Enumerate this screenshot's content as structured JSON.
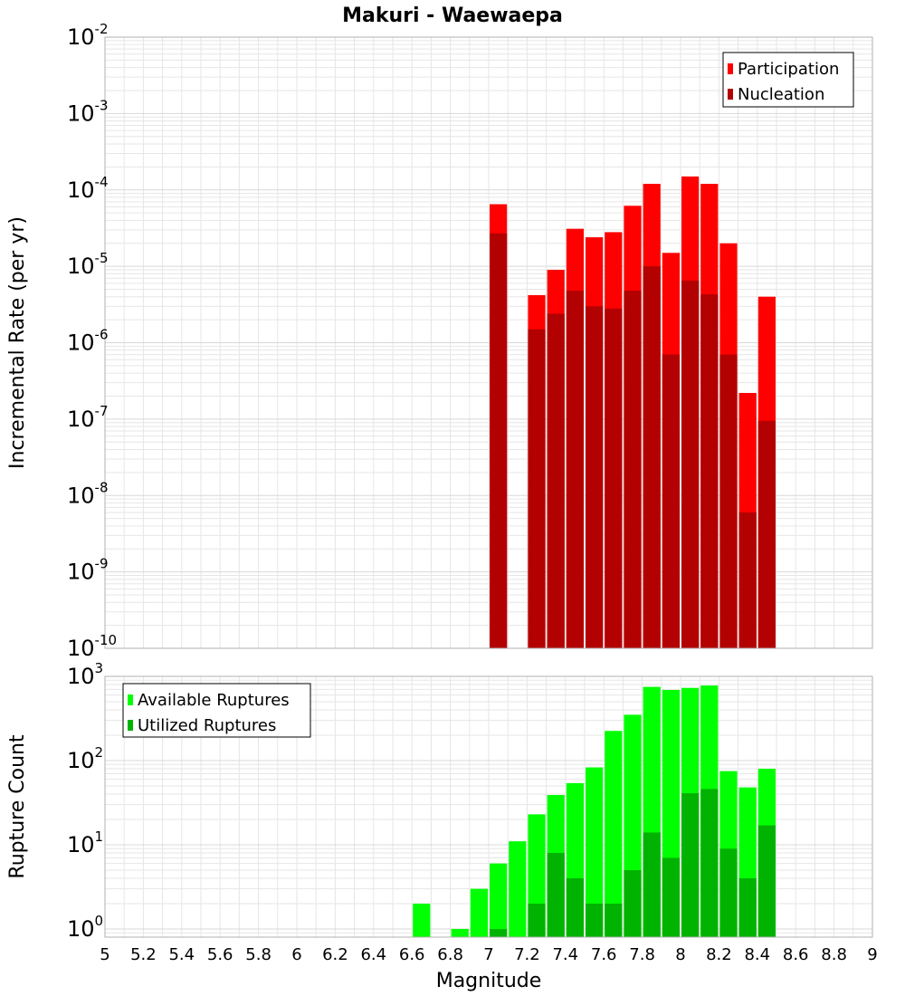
{
  "title": "Makuri - Waewaepa",
  "xlabel": "Magnitude",
  "x_ticks": [
    "5",
    "5.2",
    "5.4",
    "5.6",
    "5.8",
    "6",
    "6.2",
    "6.4",
    "6.6",
    "6.8",
    "7",
    "7.2",
    "7.4",
    "7.6",
    "7.8",
    "8",
    "8.2",
    "8.4",
    "8.6",
    "8.8",
    "9"
  ],
  "colors": {
    "participation": "#ff0000",
    "nucleation": "#b30000",
    "available": "#00ff00",
    "utilized": "#00b300",
    "grid": "#e6e6e6",
    "frame": "#b0b0b0"
  },
  "chart_data": [
    {
      "type": "bar",
      "ylabel": "Incremental Rate (per yr)",
      "yscale": "log",
      "ylim": [
        1e-10,
        0.01
      ],
      "xlim": [
        5,
        9
      ],
      "grid": true,
      "legend_position": "top-right",
      "y_tick_exponents": [
        "-10",
        "-9",
        "-8",
        "-7",
        "-6",
        "-5",
        "-4",
        "-3",
        "-2"
      ],
      "x": [
        7.05,
        7.25,
        7.35,
        7.45,
        7.55,
        7.65,
        7.75,
        7.85,
        7.95,
        8.05,
        8.15,
        8.25,
        8.35,
        8.45
      ],
      "series": [
        {
          "name": "Participation",
          "values": [
            6.5e-05,
            4.2e-06,
            9e-06,
            3.1e-05,
            2.4e-05,
            2.8e-05,
            6.2e-05,
            0.00012,
            1.5e-05,
            0.00015,
            0.00012,
            2e-05,
            2.2e-07,
            4e-06
          ]
        },
        {
          "name": "Nucleation",
          "values": [
            2.7e-05,
            1.5e-06,
            2.4e-06,
            4.8e-06,
            3e-06,
            2.8e-06,
            4.8e-06,
            1e-05,
            7e-07,
            6.5e-06,
            4.3e-06,
            7e-07,
            6e-09,
            9.5e-08
          ]
        }
      ]
    },
    {
      "type": "bar",
      "ylabel": "Rupture Count",
      "yscale": "log",
      "ylim": [
        0.8,
        1000
      ],
      "xlim": [
        5,
        9
      ],
      "grid": true,
      "legend_position": "top-left",
      "y_tick_exponents": [
        "0",
        "1",
        "2",
        "3"
      ],
      "x": [
        6.65,
        6.85,
        6.95,
        7.05,
        7.15,
        7.25,
        7.35,
        7.45,
        7.55,
        7.65,
        7.75,
        7.85,
        7.95,
        8.05,
        8.15,
        8.25,
        8.35,
        8.45
      ],
      "series": [
        {
          "name": "Available Ruptures",
          "values": [
            2,
            1,
            3,
            6,
            11,
            23,
            39,
            54,
            83,
            225,
            350,
            750,
            690,
            730,
            780,
            75,
            48,
            80
          ]
        },
        {
          "name": "Utilized Ruptures",
          "values": [
            0,
            0,
            0,
            1,
            0,
            2,
            8,
            4,
            2,
            2,
            5,
            14,
            7,
            41,
            46,
            9,
            4,
            17
          ]
        }
      ]
    }
  ]
}
